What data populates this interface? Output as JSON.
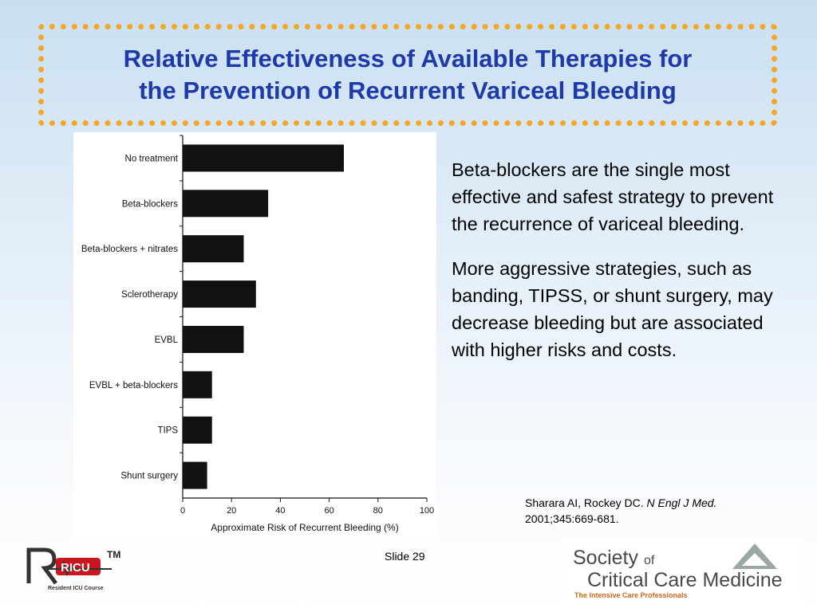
{
  "title": {
    "line1": "Relative Effectiveness of Available Therapies for",
    "line2": "the Prevention of Recurrent Variceal Bleeding"
  },
  "chart_data": {
    "type": "bar",
    "orientation": "horizontal",
    "categories": [
      "No treatment",
      "Beta-blockers",
      "Beta-blockers + nitrates",
      "Sclerotherapy",
      "EVBL",
      "EVBL + beta-blockers",
      "TIPS",
      "Shunt surgery"
    ],
    "values": [
      66,
      35,
      25,
      30,
      25,
      12,
      12,
      10
    ],
    "xlabel": "Approximate Risk of Recurrent Bleeding (%)",
    "xlim": [
      0,
      100
    ],
    "xticks": [
      "0",
      "20",
      "40",
      "60",
      "80",
      "100"
    ],
    "bar_color": "#111111",
    "grid": false
  },
  "body": {
    "paragraph1": "Beta-blockers are the single most effective and safest strategy to prevent the recurrence of variceal bleeding.",
    "paragraph2": "More aggressive strategies, such as banding, TIPSS, or shunt surgery, may decrease bleeding but are associated with higher risks and costs."
  },
  "citation": {
    "authors": "Sharara AI, Rockey DC.",
    "journal": "N Engl J Med.",
    "details": "2001;345:669-681."
  },
  "footer": {
    "slide": "Slide 29",
    "left_logo_text": "RICU",
    "left_logo_tm": "TM",
    "left_logo_sub": "Resident ICU Course",
    "right_logo_line1a": "Society",
    "right_logo_line1b": "of",
    "right_logo_line2": "Critical Care Medicine",
    "right_logo_tag": "The Intensive Care Professionals"
  },
  "colors": {
    "title": "#1e3aa8",
    "title_border": "#f5a623",
    "ricu_red": "#c8171e"
  }
}
